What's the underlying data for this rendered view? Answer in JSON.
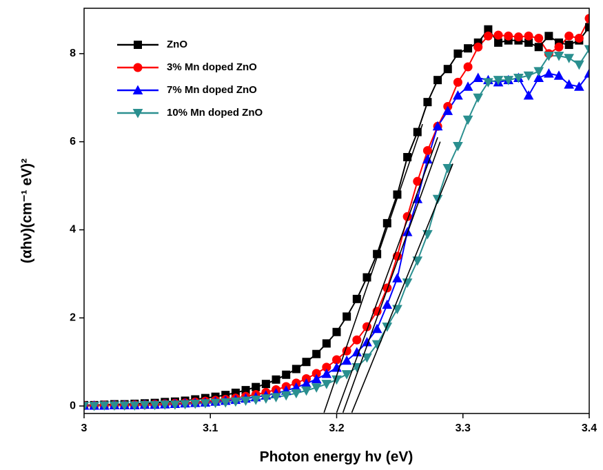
{
  "chart_data": {
    "type": "line",
    "xlabel": "Photon energy hν (eV)",
    "ylabel": "(αhν)(cm⁻¹ eV)²",
    "xlim": [
      3.0,
      3.4
    ],
    "ylim": [
      -0.17,
      9.03
    ],
    "xticks": [
      3.0,
      3.1,
      3.2,
      3.3,
      3.4
    ],
    "yticks": [
      0,
      2,
      4,
      6,
      8
    ],
    "legend": "upper left",
    "grid": false,
    "x": [
      3.0,
      3.008,
      3.016,
      3.024,
      3.032,
      3.04,
      3.048,
      3.056,
      3.064,
      3.072,
      3.08,
      3.088,
      3.096,
      3.104,
      3.112,
      3.12,
      3.128,
      3.136,
      3.144,
      3.152,
      3.16,
      3.168,
      3.176,
      3.184,
      3.192,
      3.2,
      3.208,
      3.216,
      3.224,
      3.232,
      3.24,
      3.248,
      3.256,
      3.264,
      3.272,
      3.28,
      3.288,
      3.296,
      3.304,
      3.312,
      3.32,
      3.328,
      3.336,
      3.344,
      3.352,
      3.36,
      3.368,
      3.376,
      3.384,
      3.392,
      3.4
    ],
    "series": [
      {
        "name": "ZnO",
        "color": "#000000",
        "marker": "square",
        "values": [
          0.02,
          0.02,
          0.03,
          0.04,
          0.04,
          0.05,
          0.06,
          0.07,
          0.09,
          0.1,
          0.12,
          0.15,
          0.18,
          0.21,
          0.25,
          0.3,
          0.36,
          0.43,
          0.5,
          0.6,
          0.71,
          0.84,
          1.0,
          1.18,
          1.42,
          1.68,
          2.03,
          2.43,
          2.92,
          3.45,
          4.15,
          4.8,
          5.65,
          6.22,
          6.9,
          7.4,
          7.65,
          8.0,
          8.12,
          8.25,
          8.55,
          8.25,
          8.3,
          8.3,
          8.25,
          8.15,
          8.4,
          8.25,
          8.2,
          8.3,
          8.6
        ]
      },
      {
        "name": "3% Mn doped ZnO",
        "color": "#ff0000",
        "marker": "circle",
        "values": [
          0.01,
          0.01,
          0.02,
          0.02,
          0.02,
          0.03,
          0.03,
          0.04,
          0.05,
          0.06,
          0.07,
          0.09,
          0.11,
          0.13,
          0.15,
          0.18,
          0.22,
          0.26,
          0.31,
          0.37,
          0.44,
          0.52,
          0.62,
          0.74,
          0.88,
          1.05,
          1.25,
          1.5,
          1.8,
          2.15,
          2.68,
          3.4,
          4.3,
          5.1,
          5.8,
          6.35,
          6.8,
          7.35,
          7.7,
          8.15,
          8.4,
          8.42,
          8.4,
          8.38,
          8.4,
          8.35,
          8.0,
          8.15,
          8.4,
          8.35,
          8.8
        ]
      },
      {
        "name": "7% Mn doped ZnO",
        "color": "#0000ff",
        "marker": "triangle-up",
        "values": [
          0.01,
          0.01,
          0.01,
          0.02,
          0.02,
          0.02,
          0.03,
          0.03,
          0.04,
          0.05,
          0.06,
          0.07,
          0.08,
          0.1,
          0.12,
          0.14,
          0.17,
          0.2,
          0.24,
          0.29,
          0.35,
          0.42,
          0.51,
          0.61,
          0.73,
          0.87,
          1.03,
          1.22,
          1.45,
          1.75,
          2.3,
          2.9,
          3.95,
          4.7,
          5.6,
          6.35,
          6.7,
          7.05,
          7.25,
          7.45,
          7.4,
          7.35,
          7.4,
          7.45,
          7.05,
          7.45,
          7.55,
          7.5,
          7.3,
          7.25,
          7.55
        ]
      },
      {
        "name": "10% Mn doped ZnO",
        "color": "#2a8f8f",
        "marker": "triangle-down",
        "values": [
          0.0,
          0.0,
          0.01,
          0.01,
          0.01,
          0.01,
          0.02,
          0.02,
          0.03,
          0.03,
          0.04,
          0.05,
          0.06,
          0.07,
          0.08,
          0.1,
          0.12,
          0.14,
          0.17,
          0.2,
          0.24,
          0.29,
          0.35,
          0.42,
          0.5,
          0.6,
          0.72,
          0.88,
          1.1,
          1.4,
          1.8,
          2.2,
          2.8,
          3.3,
          3.9,
          4.7,
          5.4,
          5.9,
          6.5,
          7.0,
          7.35,
          7.4,
          7.4,
          7.45,
          7.5,
          7.6,
          7.95,
          7.95,
          7.9,
          7.75,
          8.1
        ]
      }
    ],
    "fit_lines": [
      {
        "x": [
          3.19,
          3.268
        ],
        "y": [
          -0.15,
          6.4
        ]
      },
      {
        "x": [
          3.2,
          3.28
        ],
        "y": [
          -0.15,
          6.1
        ]
      },
      {
        "x": [
          3.205,
          3.282
        ],
        "y": [
          -0.15,
          6.0
        ]
      },
      {
        "x": [
          3.212,
          3.292
        ],
        "y": [
          -0.15,
          5.5
        ]
      }
    ]
  }
}
